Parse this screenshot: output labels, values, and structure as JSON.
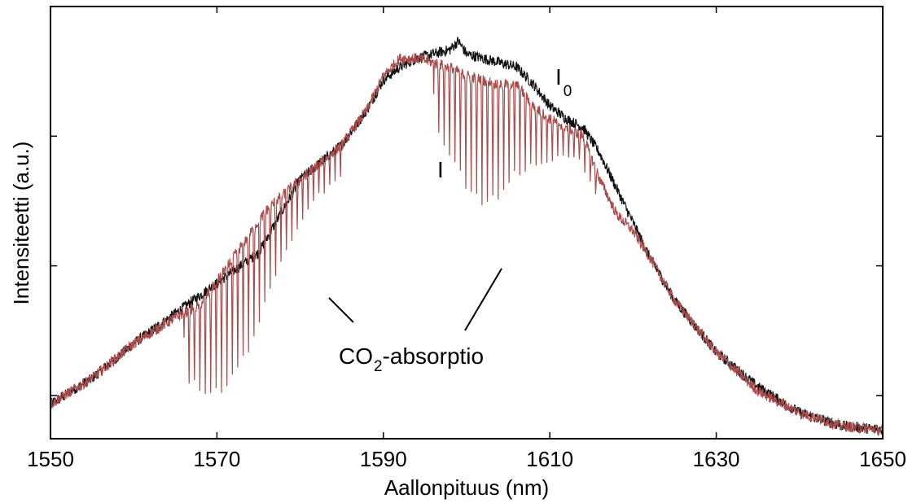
{
  "chart_data": {
    "type": "line",
    "title": "",
    "xlabel": "Aallonpituus (nm)",
    "ylabel": "Intensiteetti (a.u.)",
    "xlim": [
      1550,
      1650
    ],
    "ylim": [
      0,
      1
    ],
    "x_ticks": [
      1550,
      1570,
      1590,
      1610,
      1630,
      1650
    ],
    "y_ticks_labeled": false,
    "y_ticks": [
      0.1,
      0.4,
      0.7,
      1.0
    ],
    "grid": false,
    "legend": "none",
    "series": [
      {
        "name": "I0",
        "color": "#111111",
        "x": [
          1550,
          1555,
          1560,
          1565,
          1570,
          1575,
          1580,
          1585,
          1588,
          1590,
          1592,
          1594,
          1596,
          1598,
          1599,
          1600,
          1602,
          1604,
          1606,
          1608,
          1610,
          1612,
          1614,
          1616,
          1618,
          1620,
          1622,
          1625,
          1630,
          1635,
          1640,
          1645,
          1650
        ],
        "y": [
          0.08,
          0.14,
          0.22,
          0.29,
          0.36,
          0.43,
          0.6,
          0.68,
          0.76,
          0.83,
          0.86,
          0.88,
          0.89,
          0.9,
          0.92,
          0.89,
          0.88,
          0.87,
          0.86,
          0.82,
          0.77,
          0.74,
          0.72,
          0.66,
          0.58,
          0.5,
          0.42,
          0.32,
          0.2,
          0.12,
          0.06,
          0.03,
          0.02
        ]
      },
      {
        "name": "I",
        "color": "#a94c4c",
        "x": [
          1550,
          1555,
          1560,
          1565,
          1568,
          1572,
          1576,
          1580,
          1585,
          1588,
          1590,
          1592,
          1594,
          1596,
          1598,
          1600,
          1602,
          1604,
          1606,
          1608,
          1610,
          1612,
          1614,
          1616,
          1618,
          1620,
          1622,
          1625,
          1630,
          1635,
          1640,
          1645,
          1650
        ],
        "y": [
          0.08,
          0.14,
          0.22,
          0.28,
          0.31,
          0.42,
          0.53,
          0.6,
          0.68,
          0.76,
          0.84,
          0.88,
          0.88,
          0.87,
          0.86,
          0.84,
          0.83,
          0.82,
          0.82,
          0.77,
          0.74,
          0.72,
          0.7,
          0.6,
          0.52,
          0.48,
          0.42,
          0.32,
          0.2,
          0.11,
          0.06,
          0.03,
          0.02
        ]
      }
    ],
    "absorption_bands": [
      {
        "from": 1566,
        "to": 1585,
        "center": 1572
      },
      {
        "from": 1596,
        "to": 1616,
        "center": 1602
      }
    ],
    "annotations": {
      "I0_label": {
        "main": "I",
        "sub": "0"
      },
      "I_label": "I",
      "co2_label": {
        "prefix": "CO",
        "sub": "2",
        "suffix": "-absorptio"
      }
    }
  }
}
